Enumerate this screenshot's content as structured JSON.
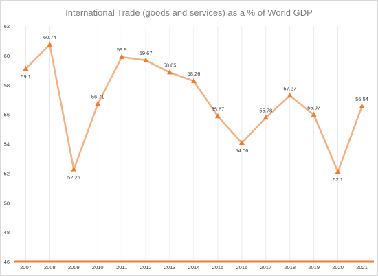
{
  "chart_data": {
    "type": "line",
    "title": "International Trade (goods and services) as a % of World GDP",
    "xlabel": "",
    "ylabel": "",
    "ylim": [
      46,
      62
    ],
    "y_ticks": [
      46,
      48,
      50,
      52,
      54,
      56,
      58,
      60,
      62
    ],
    "categories": [
      "2007",
      "2008",
      "2009",
      "2010",
      "2011",
      "2012",
      "2013",
      "2014",
      "2015",
      "2016",
      "2017",
      "2018",
      "2019",
      "2020",
      "2021"
    ],
    "series": [
      {
        "values": [
          59.1,
          60.74,
          52.26,
          56.71,
          59.9,
          59.67,
          58.85,
          58.26,
          55.87,
          54.06,
          55.78,
          57.27,
          55.97,
          52.1,
          56.54
        ],
        "labels": [
          "59.1",
          "60.74",
          "52.26",
          "56.71",
          "59.9",
          "59.67",
          "58.85",
          "58.26",
          "55.87",
          "54.06",
          "55.78",
          "57.27",
          "55.97",
          "52.1",
          "56.54"
        ],
        "line_color": "#f4b183",
        "marker_color": "#ed7d31",
        "marker": "triangle"
      }
    ],
    "grid": {
      "horizontal": false,
      "vertical": true
    },
    "legend": "none",
    "baseline_color": "#ed7d31"
  }
}
